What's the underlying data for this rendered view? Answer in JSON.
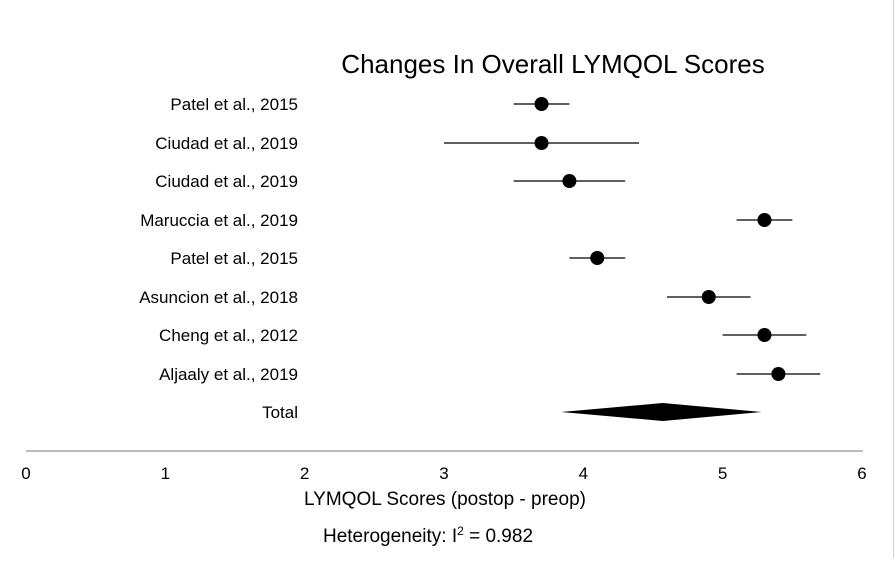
{
  "chart_data": {
    "type": "forest",
    "title": "Changes In Overall LYMQOL Scores",
    "xlabel": "LYMQOL Scores (postop - preop)",
    "xlim": [
      0,
      6
    ],
    "xticks": [
      "0",
      "1",
      "2",
      "3",
      "4",
      "5",
      "6"
    ],
    "grid": false,
    "studies": [
      {
        "label": "Patel et al., 2015",
        "estimate": 3.7,
        "ci": [
          3.5,
          3.9
        ]
      },
      {
        "label": "Ciudad et al., 2019",
        "estimate": 3.7,
        "ci": [
          3.0,
          4.4
        ]
      },
      {
        "label": "Ciudad et al., 2019",
        "estimate": 3.9,
        "ci": [
          3.5,
          4.3
        ]
      },
      {
        "label": "Maruccia et al., 2019",
        "estimate": 5.3,
        "ci": [
          5.1,
          5.5
        ]
      },
      {
        "label": "Patel et al., 2015",
        "estimate": 4.1,
        "ci": [
          3.9,
          4.3
        ]
      },
      {
        "label": "Asuncion et al., 2018",
        "estimate": 4.9,
        "ci": [
          4.6,
          5.2
        ]
      },
      {
        "label": "Cheng et al., 2012",
        "estimate": 5.3,
        "ci": [
          5.0,
          5.6
        ]
      },
      {
        "label": "Aljaaly et al., 2019",
        "estimate": 5.4,
        "ci": [
          5.1,
          5.7
        ]
      }
    ],
    "total": {
      "label": "Total",
      "estimate": 4.57,
      "ci": [
        3.84,
        5.28
      ]
    },
    "heterogeneity": {
      "prefix": "Heterogeneity: I",
      "superscript": "2",
      "suffix": " = 0.982"
    }
  },
  "colors": {
    "marker": "#000000",
    "axis": "#a6a6a6",
    "text": "#000000"
  }
}
